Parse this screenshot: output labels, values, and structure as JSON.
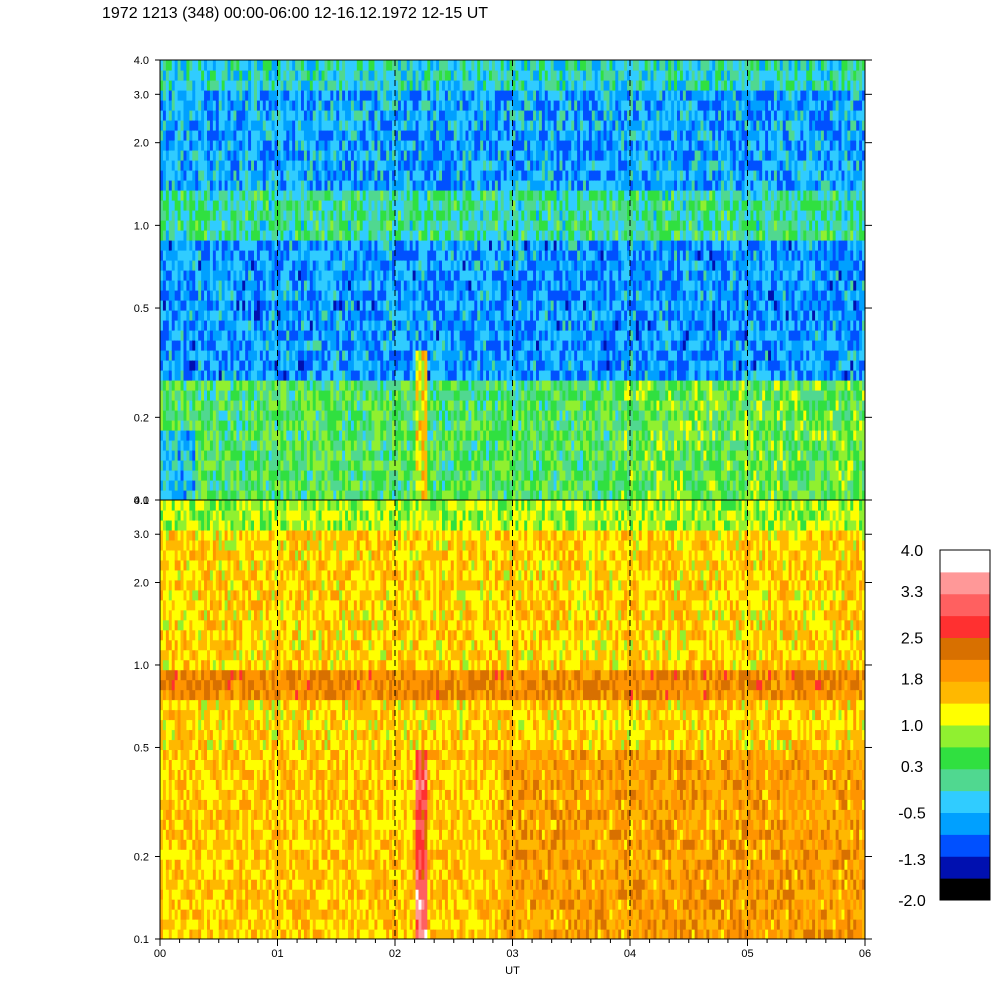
{
  "title": "1972 1213 (348) 00:00-06:00 12-16.12.1972  12-15 UT",
  "colors": {
    "scale": [
      "#000000",
      "#0010b0",
      "#0050ff",
      "#00a0ff",
      "#30ccff",
      "#50d890",
      "#30e040",
      "#90f030",
      "#ffff00",
      "#ffb800",
      "#ff9400",
      "#d87000",
      "#ff3030",
      "#ff6060",
      "#ff9898",
      "#ffffff"
    ],
    "dashed_lines": "#000000",
    "frame": "#000000"
  },
  "chart_data": [
    {
      "type": "heatmap",
      "panel": "upper",
      "title": "",
      "xlabel": "",
      "ylabel": "",
      "y_scale": "log",
      "ylim": [
        0.1,
        4.0
      ],
      "xlim": [
        0,
        6
      ],
      "y_ticks": [
        0.1,
        0.2,
        0.5,
        1.0,
        2.0,
        3.0,
        4.0
      ],
      "y_tick_labels": [
        "0.1",
        "0.2",
        "0.5",
        "1.0",
        "2.0",
        "3.0",
        "4.0"
      ],
      "dashed_hours": [
        1,
        2,
        3,
        4,
        5
      ],
      "description_levels": {
        "low_freq_band_below_0.3": "green, 0.3 to 1.0",
        "mid_band": "blue, -0.5 to -1.3",
        "high_band": "light blue / green"
      }
    },
    {
      "type": "heatmap",
      "panel": "lower",
      "title": "",
      "xlabel": "UT",
      "ylabel": "",
      "y_scale": "log",
      "ylim": [
        0.1,
        4.0
      ],
      "xlim": [
        0,
        6
      ],
      "x_ticks": [
        0,
        1,
        2,
        3,
        4,
        5,
        6
      ],
      "x_tick_labels": [
        "00",
        "01",
        "02",
        "03",
        "04",
        "05",
        "06"
      ],
      "y_ticks": [
        0.1,
        0.2,
        0.5,
        1.0,
        2.0,
        3.0,
        4.0
      ],
      "y_tick_labels": [
        "0.1",
        "0.2",
        "0.5",
        "1.0",
        "2.0",
        "3.0",
        "4.0"
      ],
      "dashed_hours": [
        1,
        2,
        3,
        4,
        5
      ],
      "horizontal_band_khz": [
        0.75,
        0.97
      ]
    }
  ],
  "colorbar": {
    "labels": [
      "4.0",
      "3.3",
      "2.5",
      "1.8",
      "1.0",
      "0.3",
      "-0.5",
      "-1.3",
      "-2.0"
    ],
    "min": -2.0,
    "max": 4.0,
    "steps": 16
  }
}
